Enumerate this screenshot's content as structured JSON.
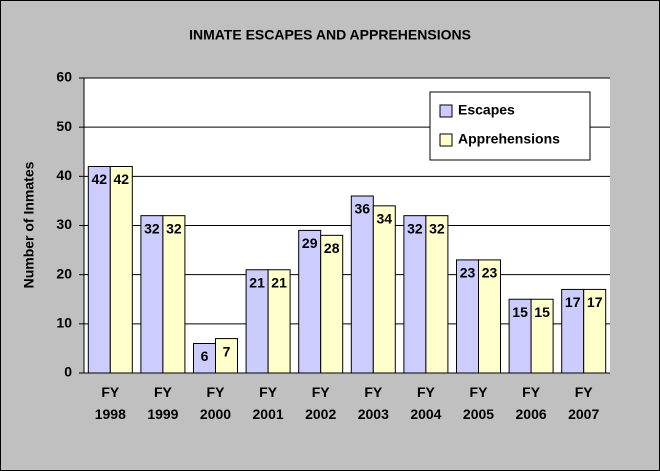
{
  "chart_data": {
    "type": "bar",
    "title": "INMATE ESCAPES AND APPREHENSIONS",
    "y_label": "Number of Inmates",
    "categories": [
      "FY 1998",
      "FY 1999",
      "FY 2000",
      "FY 2001",
      "FY 2002",
      "FY 2003",
      "FY 2004",
      "FY 2005",
      "FY 2006",
      "FY 2007"
    ],
    "series": [
      {
        "name": "Escapes",
        "color": "#ccccff",
        "values": [
          42,
          32,
          6,
          21,
          29,
          36,
          32,
          23,
          15,
          17
        ]
      },
      {
        "name": "Apprehensions",
        "color": "#ffffcc",
        "values": [
          42,
          32,
          7,
          21,
          28,
          34,
          32,
          23,
          15,
          17
        ]
      }
    ],
    "ylim": [
      0,
      60
    ],
    "yticks": [
      0,
      10,
      20,
      30,
      40,
      50,
      60
    ],
    "grid": true,
    "legend": "top-right"
  }
}
